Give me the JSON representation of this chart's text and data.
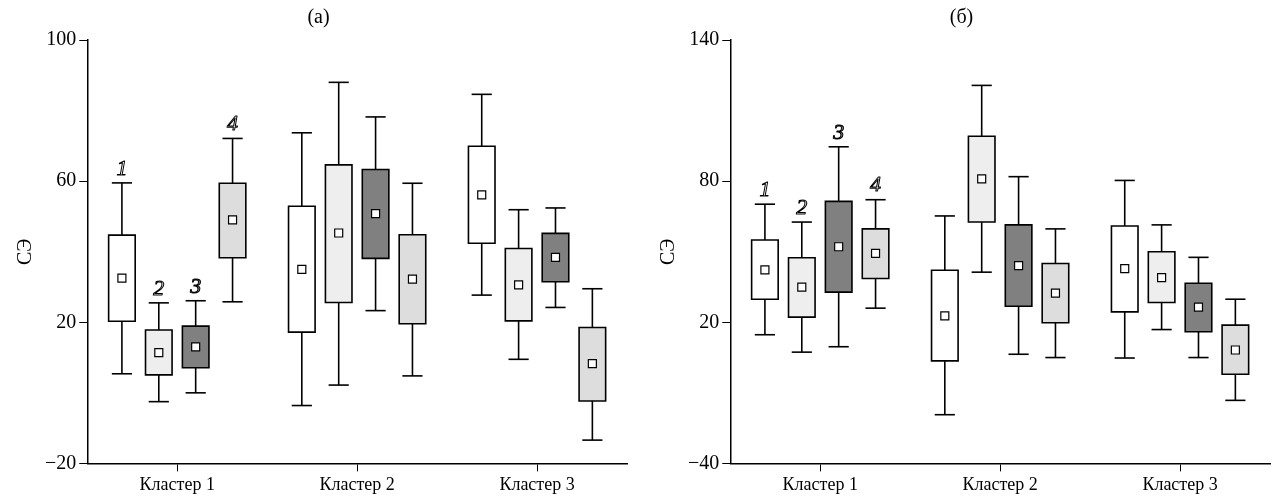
{
  "chart_data": [
    {
      "type": "box",
      "title": "(а)",
      "ylabel": "СЭ",
      "categories": [
        "Кластер 1",
        "Кластер 2",
        "Кластер 3"
      ],
      "ylim": [
        -20,
        100
      ],
      "yticks": [
        {
          "value": -20,
          "label": "−20"
        },
        20,
        60,
        100
      ],
      "grid": false,
      "legend": false,
      "series": [
        {
          "name": "1",
          "color": "#ffffff",
          "boxes": [
            {
              "low": 5.4,
              "q1": 20.3,
              "median": 32.5,
              "q3": 44.7,
              "high": 59.5
            },
            {
              "low": -3.6,
              "q1": 17.2,
              "median": 35,
              "q3": 52.9,
              "high": 73.7
            },
            {
              "low": 27.7,
              "q1": 42.4,
              "median": 56.1,
              "q3": 69.9,
              "high": 84.6
            }
          ]
        },
        {
          "name": "2",
          "color": "#eeeeee",
          "boxes": [
            {
              "low": -2.5,
              "q1": 5.1,
              "median": 11.4,
              "q3": 17.8,
              "high": 25.5
            },
            {
              "low": 2.2,
              "q1": 25.6,
              "median": 45.3,
              "q3": 64.6,
              "high": 88
            },
            {
              "low": 9.5,
              "q1": 20.4,
              "median": 30.6,
              "q3": 40.9,
              "high": 51.9
            }
          ]
        },
        {
          "name": "3",
          "color": "#808080",
          "boxes": [
            {
              "low": 0,
              "q1": 7.1,
              "median": 13,
              "q3": 18.9,
              "high": 26.1
            },
            {
              "low": 23.3,
              "q1": 38.1,
              "median": 50.8,
              "q3": 63.3,
              "high": 78.2
            },
            {
              "low": 24.2,
              "q1": 31.5,
              "median": 38.4,
              "q3": 45.2,
              "high": 52.4
            }
          ]
        },
        {
          "name": "4",
          "color": "#dddddd",
          "boxes": [
            {
              "low": 25.8,
              "q1": 38.3,
              "median": 49,
              "q3": 59.4,
              "high": 72.1
            },
            {
              "low": 4.8,
              "q1": 19.6,
              "median": 32.2,
              "q3": 44.8,
              "high": 59.4
            },
            {
              "low": -13.4,
              "q1": -2.3,
              "median": 8.3,
              "q3": 18.5,
              "high": 29.5
            }
          ]
        }
      ]
    },
    {
      "type": "box",
      "title": "(б)",
      "ylabel": "СЭ",
      "categories": [
        "Кластер 1",
        "Кластер 2",
        "Кластер 3"
      ],
      "ylim": [
        -40,
        140
      ],
      "yticks": [
        {
          "value": -40,
          "label": "−40"
        },
        20,
        80,
        140
      ],
      "grid": false,
      "legend": false,
      "series": [
        {
          "name": "1",
          "color": "#ffffff",
          "boxes": [
            {
              "low": 14.7,
              "q1": 29.8,
              "median": 42.3,
              "q3": 55,
              "high": 70.2
            },
            {
              "low": -19.3,
              "q1": 3.6,
              "median": 22.7,
              "q3": 42.1,
              "high": 65.2
            },
            {
              "low": 4.8,
              "q1": 24.4,
              "median": 42.8,
              "q3": 60.9,
              "high": 80.3
            }
          ]
        },
        {
          "name": "2",
          "color": "#eeeeee",
          "boxes": [
            {
              "low": 7.3,
              "q1": 22.2,
              "median": 34.9,
              "q3": 47.4,
              "high": 62.6
            },
            {
              "low": 41.3,
              "q1": 62.6,
              "median": 81,
              "q3": 99.1,
              "high": 120.7
            },
            {
              "low": 16.9,
              "q1": 28.4,
              "median": 39,
              "q3": 50,
              "high": 61.4
            }
          ]
        },
        {
          "name": "3",
          "color": "#808080",
          "boxes": [
            {
              "low": 9.6,
              "q1": 32.8,
              "median": 52.1,
              "q3": 71.4,
              "high": 94.6
            },
            {
              "low": 6.4,
              "q1": 26.8,
              "median": 44.1,
              "q3": 61.4,
              "high": 81.9
            },
            {
              "low": 5,
              "q1": 16,
              "median": 26.4,
              "q3": 36.6,
              "high": 47.6
            }
          ]
        },
        {
          "name": "4",
          "color": "#dddddd",
          "boxes": [
            {
              "low": 26,
              "q1": 38.6,
              "median": 49.3,
              "q3": 59.7,
              "high": 72.1
            },
            {
              "low": 5,
              "q1": 19.8,
              "median": 32.4,
              "q3": 45,
              "high": 59.7
            },
            {
              "low": -13.2,
              "q1": -2.1,
              "median": 8.2,
              "q3": 18.8,
              "high": 29.8
            }
          ]
        }
      ]
    }
  ]
}
